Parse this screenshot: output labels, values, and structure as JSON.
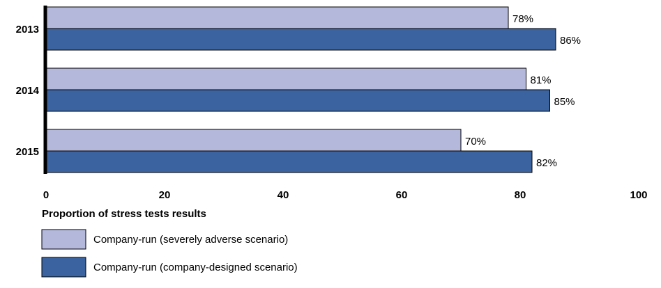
{
  "chart_data": {
    "type": "bar",
    "orientation": "horizontal",
    "categories": [
      "2013",
      "2014",
      "2015"
    ],
    "series": [
      {
        "name": "Company-run (severely adverse scenario)",
        "values": [
          78,
          81,
          70
        ],
        "labels": [
          "78%",
          "81%",
          "70%"
        ],
        "color": "#b4b9dc"
      },
      {
        "name": "Company-run (company-designed scenario)",
        "values": [
          86,
          85,
          82
        ],
        "labels": [
          "86%",
          "85%",
          "82%"
        ],
        "color": "#3a63a0"
      }
    ],
    "xlabel": "Proportion of stress tests results",
    "xlim": [
      0,
      100
    ],
    "xticks": [
      0,
      20,
      40,
      60,
      80,
      100
    ],
    "xtick_labels": [
      "0",
      "20",
      "40",
      "60",
      "80",
      "100"
    ],
    "grid": false,
    "legend_position": "bottom-left"
  }
}
